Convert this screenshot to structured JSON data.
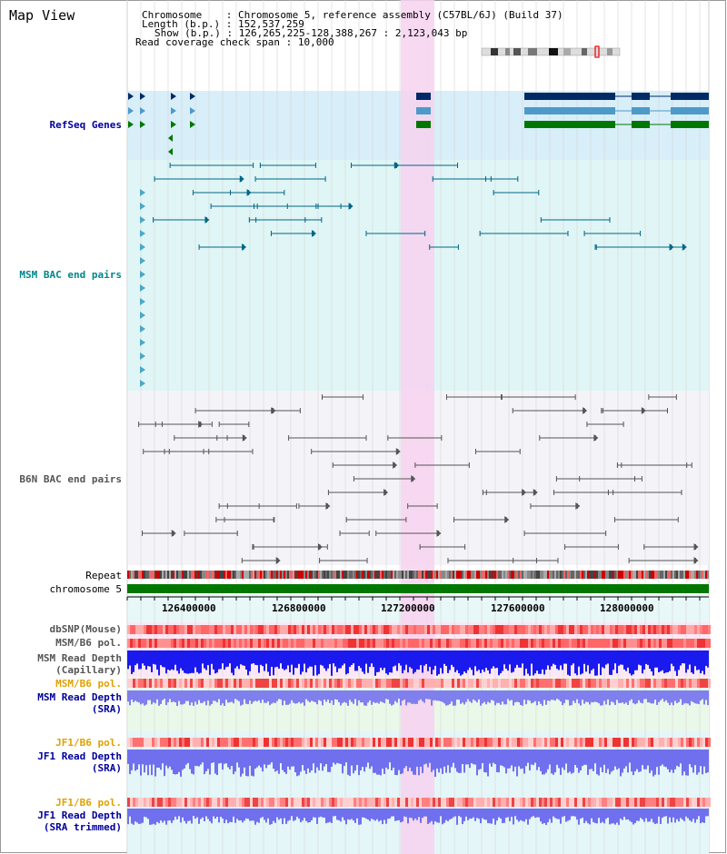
{
  "header": {
    "title": "Map View",
    "chromosome_label": "Chromosome",
    "chromosome_value": "Chromosome 5, reference assembly (C57BL/6J) (Build 37)",
    "length_label": "Length (b.p.)",
    "length_value": "152,537,259",
    "show_label": "Show (b.p.)",
    "show_value": "126,265,225-128,388,267 : 2,123,043 bp",
    "coverage_label": "Read coverage check span",
    "coverage_value": "10,000"
  },
  "tracks": {
    "refseq": "RefSeq Genes",
    "msm_bac": "MSM BAC end pairs",
    "b6n_bac": "B6N BAC end pairs",
    "repeat": "Repeat",
    "chromosome": "chromosome 5",
    "dbsnp": "dbSNP(Mouse)",
    "msm_b6_pol_1": "MSM/B6 pol.",
    "msm_read_depth_cap_1": "MSM Read Depth",
    "msm_read_depth_cap_2": "(Capillary)",
    "msm_b6_pol_2": "MSM/B6 pol.",
    "msm_read_depth_sra_1": "MSM Read Depth",
    "msm_read_depth_sra_2": "(SRA)",
    "jf1_b6_pol_1": "JF1/B6 pol.",
    "jf1_read_depth_sra_1": "JF1 Read Depth",
    "jf1_read_depth_sra_2": "(SRA)",
    "jf1_b6_pol_2": "JF1/B6 pol.",
    "jf1_read_depth_trim_1": "JF1 Read Depth",
    "jf1_read_depth_trim_2": "(SRA trimmed)"
  },
  "axis": {
    "ticks": [
      "126400000",
      "126800000",
      "127200000",
      "127600000",
      "128000000"
    ]
  },
  "colors": {
    "refseq_bg": "#d8eef9",
    "msm_bg": "#e0f5f5",
    "b6n_bg": "#f4f4f8",
    "highlight": "#f7d2f0",
    "chrom_bar": "#007700",
    "label_blue": "#00009c",
    "label_teal": "#00868b",
    "label_gray": "#555555",
    "label_orange": "#e0a000"
  }
}
